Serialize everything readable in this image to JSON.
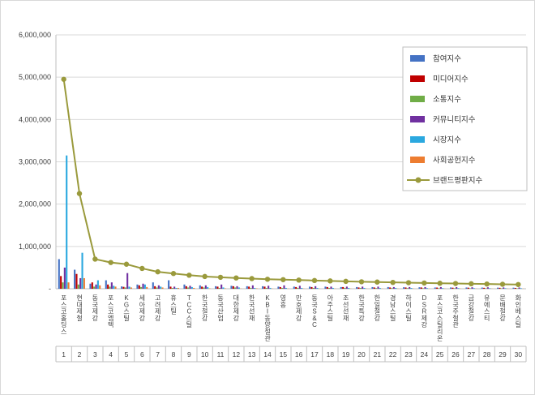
{
  "figure": {
    "title": "",
    "background": "#ffffff",
    "border_color": "#d9d9d9"
  },
  "chart_data": {
    "type": "bar",
    "combo": [
      "bar",
      "line"
    ],
    "title": "",
    "xlabel": "",
    "ylabel": "",
    "grid": true,
    "legend_position": "right-top",
    "categories": [
      "포스코홀딩스",
      "현대제철",
      "동국제강",
      "포스코엠텍",
      "KG스틸",
      "세아제강",
      "고려제강",
      "휴스틸",
      "TCC스틸",
      "한국철강",
      "동국산업",
      "대한제강",
      "한국선재",
      "KBI동양철관",
      "영흥",
      "만호제강",
      "동국S&C",
      "아주스틸",
      "조선선재",
      "한국특강",
      "한일철강",
      "경남스틸",
      "하이스틸",
      "DSR제강",
      "포스코스틸리온",
      "한국주철관",
      "금강철강",
      "유에스티",
      "문배철강",
      "화인베스틸"
    ],
    "rank_labels": [
      "1",
      "2",
      "3",
      "4",
      "5",
      "6",
      "7",
      "8",
      "9",
      "10",
      "11",
      "12",
      "13",
      "14",
      "15",
      "16",
      "17",
      "18",
      "19",
      "20",
      "21",
      "22",
      "23",
      "24",
      "25",
      "26",
      "27",
      "28",
      "29",
      "30"
    ],
    "yaxis": {
      "min": 0,
      "max": 6000000,
      "step": 1000000,
      "tick_labels": [
        "-",
        "1,000,000",
        "2,000,000",
        "3,000,000",
        "4,000,000",
        "5,000,000",
        "6,000,000"
      ]
    },
    "series": [
      {
        "name": "참여지수",
        "type": "bar",
        "color": "#4472C4",
        "values": [
          700000,
          450000,
          120000,
          200000,
          55000,
          100000,
          150000,
          200000,
          100000,
          80000,
          60000,
          70000,
          60000,
          60000,
          50000,
          50000,
          50000,
          50000,
          40000,
          40000,
          40000,
          40000,
          35000,
          35000,
          30000,
          30000,
          30000,
          28000,
          26000,
          25000
        ]
      },
      {
        "name": "미디어지수",
        "type": "bar",
        "color": "#C00000",
        "values": [
          300000,
          350000,
          150000,
          100000,
          45000,
          80000,
          60000,
          50000,
          60000,
          50000,
          50000,
          60000,
          50000,
          50000,
          40000,
          40000,
          40000,
          40000,
          40000,
          30000,
          30000,
          30000,
          30000,
          30000,
          28000,
          25000,
          25000,
          22000,
          22000,
          20000
        ]
      },
      {
        "name": "소통지수",
        "type": "bar",
        "color": "#70AD47",
        "values": [
          150000,
          100000,
          50000,
          50000,
          30000,
          40000,
          30000,
          20000,
          30000,
          30000,
          20000,
          30000,
          20000,
          20000,
          20000,
          20000,
          20000,
          20000,
          20000,
          20000,
          15000,
          15000,
          15000,
          12000,
          12000,
          12000,
          10000,
          10000,
          10000,
          10000
        ]
      },
      {
        "name": "커뮤니티지수",
        "type": "bar",
        "color": "#7030A0",
        "values": [
          500000,
          250000,
          100000,
          150000,
          370000,
          120000,
          80000,
          50000,
          70000,
          80000,
          100000,
          60000,
          80000,
          70000,
          80000,
          70000,
          60000,
          50000,
          50000,
          50000,
          50000,
          40000,
          40000,
          40000,
          40000,
          38000,
          35000,
          35000,
          31000,
          30000
        ]
      },
      {
        "name": "시장지수",
        "type": "bar",
        "color": "#2BA8DF",
        "values": [
          3150000,
          850000,
          200000,
          70000,
          50000,
          100000,
          50000,
          20000,
          40000,
          40000,
          30000,
          30000,
          20000,
          20000,
          20000,
          20000,
          20000,
          20000,
          20000,
          20000,
          18000,
          20000,
          18000,
          15000,
          15000,
          15000,
          14000,
          13000,
          13000,
          12000
        ]
      },
      {
        "name": "사회공헌지수",
        "type": "bar",
        "color": "#ED7D31",
        "values": [
          150000,
          250000,
          80000,
          50000,
          30000,
          40000,
          30000,
          20000,
          20000,
          10000,
          10000,
          5000,
          10000,
          5000,
          5000,
          5000,
          5000,
          5000,
          5000,
          5000,
          5000,
          5000,
          5000,
          4000,
          5000,
          4000,
          4000,
          4000,
          4000,
          3000
        ]
      },
      {
        "name": "브랜드평판지수",
        "type": "line",
        "color": "#9A9A3C",
        "values": [
          4950000,
          2250000,
          700000,
          620000,
          580000,
          480000,
          400000,
          360000,
          320000,
          290000,
          270000,
          255000,
          240000,
          225000,
          215000,
          205000,
          195000,
          185000,
          175000,
          165000,
          158000,
          150000,
          143000,
          136000,
          130000,
          124000,
          118000,
          112000,
          106000,
          100000
        ]
      }
    ]
  }
}
